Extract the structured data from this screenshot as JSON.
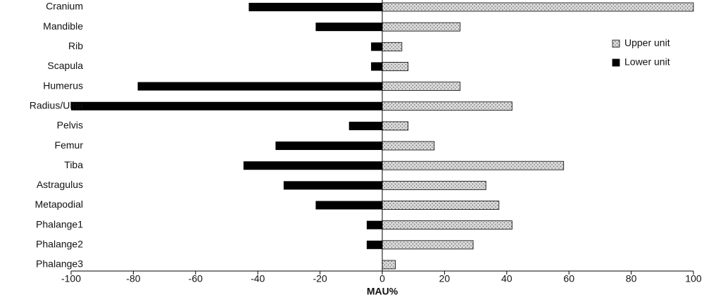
{
  "chart_data": {
    "type": "bar",
    "orientation": "horizontal",
    "categories": [
      "Cranium",
      "Mandible",
      "Rib",
      "Scapula",
      "Humerus",
      "Radius/Ulna",
      "Pelvis",
      "Femur",
      "Tiba",
      "Astragulus",
      "Metapodial",
      "Phalange1",
      "Phalange2",
      "Phalange3"
    ],
    "series": [
      {
        "name": "Upper unit",
        "fill": "#d9d9d9",
        "pattern": "dots",
        "values": [
          100,
          25,
          6.3,
          8.3,
          25,
          41.7,
          8.3,
          16.7,
          58.3,
          33.3,
          37.5,
          41.7,
          29.2,
          4.2
        ]
      },
      {
        "name": "Lower unit",
        "fill": "#000000",
        "pattern": "solid",
        "values": [
          -42.9,
          -21.4,
          -3.6,
          -3.6,
          -78.6,
          -100,
          -10.7,
          -34.3,
          -44.6,
          -31.7,
          -21.4,
          -5,
          -5,
          0
        ]
      }
    ],
    "xlabel": "MAU%",
    "ylabel": "",
    "xlim": [
      -100,
      100
    ],
    "xticks": [
      -100,
      -80,
      -60,
      -40,
      -20,
      0,
      20,
      40,
      60,
      80,
      100
    ],
    "grid": false,
    "legend_position": "top-right"
  }
}
